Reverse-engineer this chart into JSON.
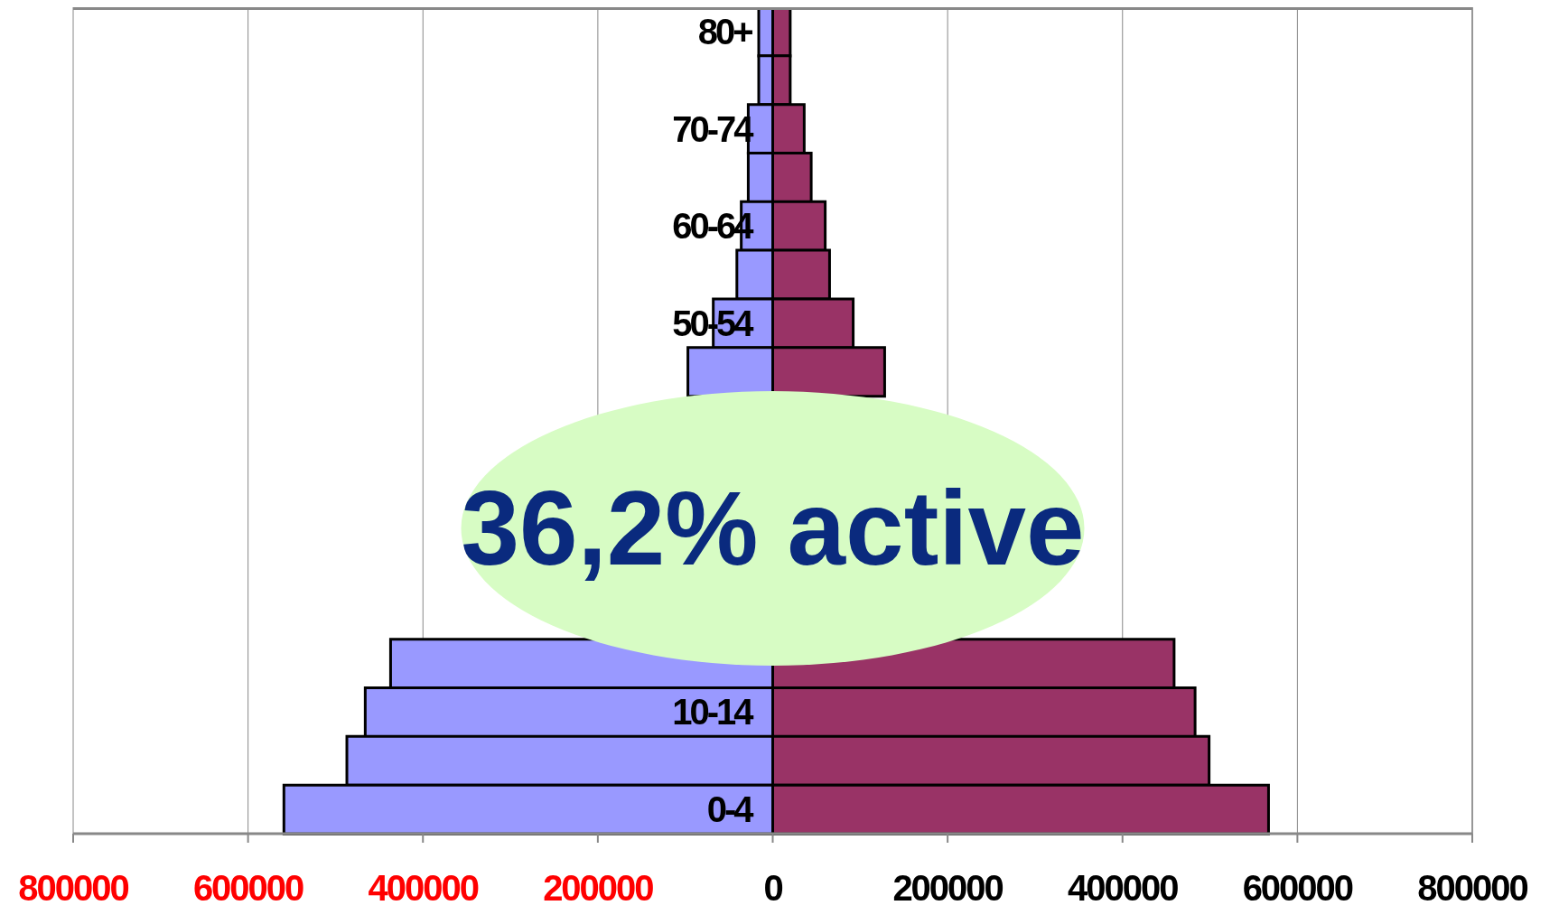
{
  "chart_data": {
    "type": "bar",
    "orientation": "horizontal",
    "stacked": true,
    "categories": [
      "80+",
      null,
      "70-74",
      null,
      "60-64",
      null,
      "50-54",
      null,
      null,
      null,
      null,
      null,
      null,
      null,
      "10-14",
      null,
      "0-4"
    ],
    "series": [
      {
        "color": "#9999ff",
        "values": [
          -16000,
          -16000,
          -28000,
          -28000,
          -36000,
          -41000,
          -68000,
          -97000,
          null,
          null,
          null,
          null,
          null,
          -437000,
          -466000,
          -487000,
          -559000
        ]
      },
      {
        "color": "#993366",
        "values": [
          20000,
          20000,
          36000,
          44000,
          60000,
          65000,
          92000,
          128000,
          null,
          null,
          null,
          null,
          null,
          459000,
          483000,
          499000,
          567000
        ]
      }
    ],
    "xlim": [
      -800000,
      800000
    ],
    "xticks": [
      {
        "value": -800000,
        "label": "800000"
      },
      {
        "value": -600000,
        "label": "600000"
      },
      {
        "value": -400000,
        "label": "400000"
      },
      {
        "value": -200000,
        "label": "200000"
      },
      0,
      200000,
      400000,
      600000,
      800000
    ],
    "grid": "x",
    "annotations": [
      "36,2% active"
    ]
  }
}
